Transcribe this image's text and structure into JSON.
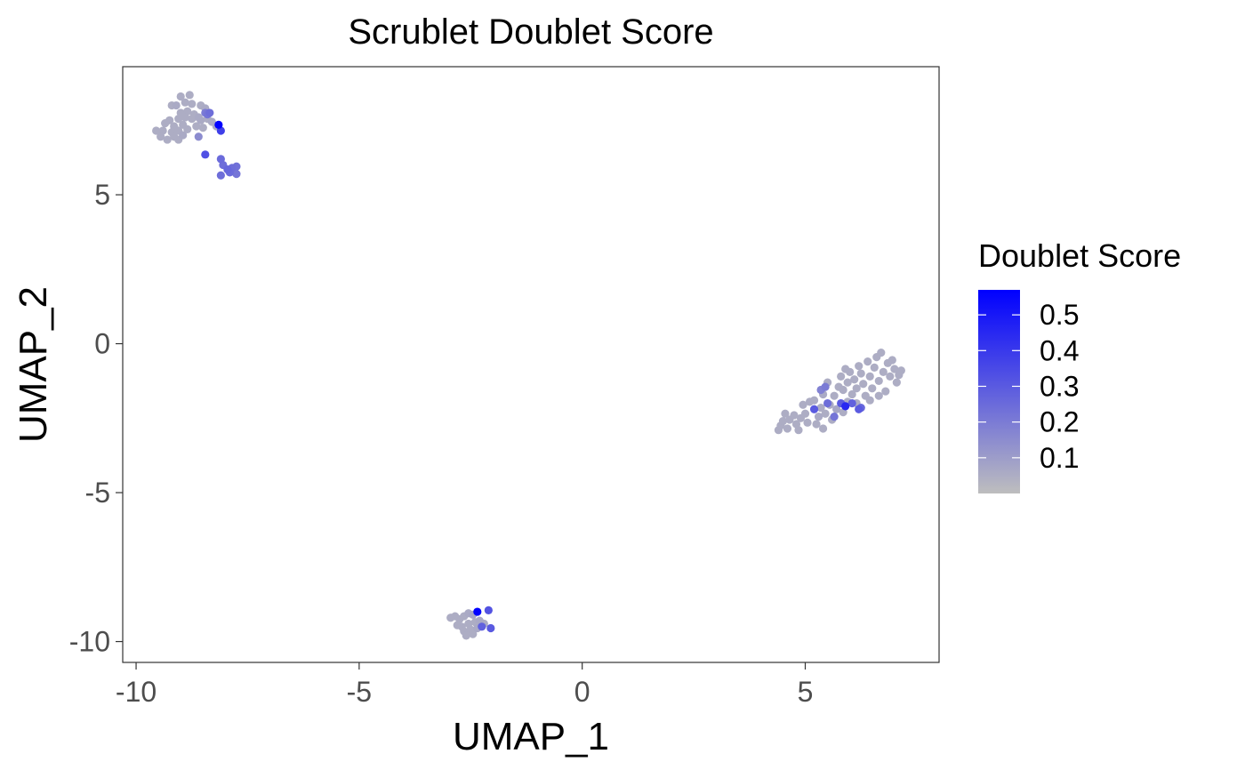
{
  "chart_data": {
    "type": "scatter",
    "title": "Scrublet Doublet Score",
    "xlabel": "UMAP_1",
    "ylabel": "UMAP_2",
    "xlim": [
      -10.3,
      8.0
    ],
    "ylim": [
      -10.7,
      9.3
    ],
    "xticks": [
      -10,
      -5,
      0,
      5
    ],
    "yticks": [
      -10,
      -5,
      0,
      5
    ],
    "grid": false,
    "legend": {
      "title": "Doublet Score",
      "placement": "right",
      "range": [
        0.0,
        0.57
      ],
      "breaks": [
        0.5,
        0.4,
        0.3,
        0.2,
        0.1
      ],
      "low_color": "#bebebe",
      "high_color": "#0000ff"
    },
    "point_color_default": "#bebebe",
    "points": [
      {
        "x": -9.0,
        "y": 8.3,
        "s": 0.05
      },
      {
        "x": -8.8,
        "y": 8.35,
        "s": 0.05
      },
      {
        "x": -8.9,
        "y": 8.1,
        "s": 0.05
      },
      {
        "x": -9.1,
        "y": 8.0,
        "s": 0.06
      },
      {
        "x": -8.75,
        "y": 8.05,
        "s": 0.05
      },
      {
        "x": -9.2,
        "y": 8.0,
        "s": 0.05
      },
      {
        "x": -8.55,
        "y": 8.0,
        "s": 0.05
      },
      {
        "x": -8.45,
        "y": 7.9,
        "s": 0.06
      },
      {
        "x": -9.0,
        "y": 7.75,
        "s": 0.05
      },
      {
        "x": -8.85,
        "y": 7.8,
        "s": 0.05
      },
      {
        "x": -8.7,
        "y": 7.7,
        "s": 0.05
      },
      {
        "x": -8.9,
        "y": 7.6,
        "s": 0.05
      },
      {
        "x": -9.05,
        "y": 7.55,
        "s": 0.05
      },
      {
        "x": -8.75,
        "y": 7.55,
        "s": 0.05
      },
      {
        "x": -8.6,
        "y": 7.6,
        "s": 0.06
      },
      {
        "x": -9.25,
        "y": 7.5,
        "s": 0.05
      },
      {
        "x": -9.35,
        "y": 7.4,
        "s": 0.05
      },
      {
        "x": -9.15,
        "y": 7.3,
        "s": 0.05
      },
      {
        "x": -8.95,
        "y": 7.35,
        "s": 0.05
      },
      {
        "x": -8.65,
        "y": 7.3,
        "s": 0.05
      },
      {
        "x": -9.4,
        "y": 7.15,
        "s": 0.05
      },
      {
        "x": -9.2,
        "y": 7.1,
        "s": 0.05
      },
      {
        "x": -9.05,
        "y": 7.15,
        "s": 0.05
      },
      {
        "x": -8.85,
        "y": 7.2,
        "s": 0.05
      },
      {
        "x": -9.55,
        "y": 7.15,
        "s": 0.05
      },
      {
        "x": -9.45,
        "y": 6.95,
        "s": 0.05
      },
      {
        "x": -9.15,
        "y": 6.95,
        "s": 0.05
      },
      {
        "x": -8.95,
        "y": 7.0,
        "s": 0.06
      },
      {
        "x": -9.3,
        "y": 6.85,
        "s": 0.05
      },
      {
        "x": -9.05,
        "y": 6.85,
        "s": 0.05
      },
      {
        "x": -8.55,
        "y": 7.5,
        "s": 0.06
      },
      {
        "x": -8.4,
        "y": 7.55,
        "s": 0.05
      },
      {
        "x": -8.3,
        "y": 7.45,
        "s": 0.06
      },
      {
        "x": -8.5,
        "y": 7.25,
        "s": 0.05
      },
      {
        "x": -8.2,
        "y": 7.3,
        "s": 0.07
      },
      {
        "x": -8.45,
        "y": 7.75,
        "s": 0.2
      },
      {
        "x": -8.4,
        "y": 7.7,
        "s": 0.22
      },
      {
        "x": -8.35,
        "y": 7.75,
        "s": 0.24
      },
      {
        "x": -8.6,
        "y": 6.95,
        "s": 0.15
      },
      {
        "x": -8.15,
        "y": 7.35,
        "s": 0.57
      },
      {
        "x": -8.1,
        "y": 7.15,
        "s": 0.38
      },
      {
        "x": -8.45,
        "y": 6.35,
        "s": 0.33
      },
      {
        "x": -8.1,
        "y": 6.2,
        "s": 0.25
      },
      {
        "x": -8.05,
        "y": 6.0,
        "s": 0.24
      },
      {
        "x": -7.95,
        "y": 5.85,
        "s": 0.26
      },
      {
        "x": -7.85,
        "y": 5.9,
        "s": 0.24
      },
      {
        "x": -7.8,
        "y": 5.8,
        "s": 0.22
      },
      {
        "x": -7.75,
        "y": 5.95,
        "s": 0.23
      },
      {
        "x": -7.9,
        "y": 5.75,
        "s": 0.25
      },
      {
        "x": -8.1,
        "y": 5.65,
        "s": 0.24
      },
      {
        "x": -7.75,
        "y": 5.7,
        "s": 0.22
      },
      {
        "x": -2.95,
        "y": -9.2,
        "s": 0.05
      },
      {
        "x": -2.85,
        "y": -9.15,
        "s": 0.05
      },
      {
        "x": -2.75,
        "y": -9.25,
        "s": 0.05
      },
      {
        "x": -2.65,
        "y": -9.15,
        "s": 0.05
      },
      {
        "x": -2.55,
        "y": -9.05,
        "s": 0.06
      },
      {
        "x": -2.45,
        "y": -9.1,
        "s": 0.07
      },
      {
        "x": -2.8,
        "y": -9.45,
        "s": 0.05
      },
      {
        "x": -2.7,
        "y": -9.5,
        "s": 0.05
      },
      {
        "x": -2.55,
        "y": -9.4,
        "s": 0.05
      },
      {
        "x": -2.4,
        "y": -9.35,
        "s": 0.05
      },
      {
        "x": -2.3,
        "y": -9.3,
        "s": 0.06
      },
      {
        "x": -2.65,
        "y": -9.65,
        "s": 0.05
      },
      {
        "x": -2.5,
        "y": -9.6,
        "s": 0.05
      },
      {
        "x": -2.35,
        "y": -9.55,
        "s": 0.06
      },
      {
        "x": -2.6,
        "y": -9.8,
        "s": 0.05
      },
      {
        "x": -2.45,
        "y": -9.75,
        "s": 0.05
      },
      {
        "x": -2.2,
        "y": -9.4,
        "s": 0.05
      },
      {
        "x": -2.35,
        "y": -9.0,
        "s": 0.57
      },
      {
        "x": -2.1,
        "y": -8.95,
        "s": 0.32
      },
      {
        "x": -2.05,
        "y": -9.55,
        "s": 0.3
      },
      {
        "x": -2.25,
        "y": -9.5,
        "s": 0.28
      },
      {
        "x": 4.4,
        "y": -2.9,
        "s": 0.05
      },
      {
        "x": 4.45,
        "y": -2.75,
        "s": 0.05
      },
      {
        "x": 4.5,
        "y": -2.6,
        "s": 0.05
      },
      {
        "x": 4.6,
        "y": -2.85,
        "s": 0.05
      },
      {
        "x": 4.65,
        "y": -2.55,
        "s": 0.05
      },
      {
        "x": 4.55,
        "y": -2.35,
        "s": 0.05
      },
      {
        "x": 4.75,
        "y": -2.4,
        "s": 0.05
      },
      {
        "x": 4.8,
        "y": -2.7,
        "s": 0.05
      },
      {
        "x": 4.9,
        "y": -2.5,
        "s": 0.05
      },
      {
        "x": 5.0,
        "y": -2.35,
        "s": 0.05
      },
      {
        "x": 5.05,
        "y": -2.65,
        "s": 0.05
      },
      {
        "x": 4.85,
        "y": -2.9,
        "s": 0.05
      },
      {
        "x": 4.95,
        "y": -2.05,
        "s": 0.05
      },
      {
        "x": 5.1,
        "y": -1.95,
        "s": 0.05
      },
      {
        "x": 5.25,
        "y": -2.7,
        "s": 0.05
      },
      {
        "x": 5.3,
        "y": -2.45,
        "s": 0.06
      },
      {
        "x": 5.35,
        "y": -2.15,
        "s": 0.05
      },
      {
        "x": 5.45,
        "y": -2.35,
        "s": 0.05
      },
      {
        "x": 5.4,
        "y": -2.85,
        "s": 0.05
      },
      {
        "x": 5.55,
        "y": -2.05,
        "s": 0.06
      },
      {
        "x": 5.6,
        "y": -2.55,
        "s": 0.05
      },
      {
        "x": 5.65,
        "y": -1.75,
        "s": 0.05
      },
      {
        "x": 5.7,
        "y": -2.2,
        "s": 0.07
      },
      {
        "x": 5.75,
        "y": -1.45,
        "s": 0.05
      },
      {
        "x": 5.8,
        "y": -1.1,
        "s": 0.05
      },
      {
        "x": 5.85,
        "y": -1.55,
        "s": 0.05
      },
      {
        "x": 5.9,
        "y": -0.85,
        "s": 0.05
      },
      {
        "x": 5.95,
        "y": -1.3,
        "s": 0.05
      },
      {
        "x": 6.0,
        "y": -0.95,
        "s": 0.05
      },
      {
        "x": 6.05,
        "y": -1.7,
        "s": 0.05
      },
      {
        "x": 6.1,
        "y": -1.2,
        "s": 0.05
      },
      {
        "x": 6.15,
        "y": -1.5,
        "s": 0.05
      },
      {
        "x": 6.2,
        "y": -0.75,
        "s": 0.05
      },
      {
        "x": 6.25,
        "y": -1.0,
        "s": 0.05
      },
      {
        "x": 6.3,
        "y": -1.35,
        "s": 0.05
      },
      {
        "x": 6.35,
        "y": -1.75,
        "s": 0.05
      },
      {
        "x": 6.4,
        "y": -0.6,
        "s": 0.05
      },
      {
        "x": 6.45,
        "y": -1.1,
        "s": 0.05
      },
      {
        "x": 6.5,
        "y": -1.5,
        "s": 0.05
      },
      {
        "x": 6.55,
        "y": -0.8,
        "s": 0.05
      },
      {
        "x": 6.6,
        "y": -0.45,
        "s": 0.05
      },
      {
        "x": 6.65,
        "y": -1.25,
        "s": 0.05
      },
      {
        "x": 6.7,
        "y": -0.3,
        "s": 0.05
      },
      {
        "x": 6.75,
        "y": -0.95,
        "s": 0.05
      },
      {
        "x": 6.8,
        "y": -1.6,
        "s": 0.05
      },
      {
        "x": 6.85,
        "y": -0.65,
        "s": 0.05
      },
      {
        "x": 6.9,
        "y": -1.1,
        "s": 0.05
      },
      {
        "x": 6.95,
        "y": -0.55,
        "s": 0.05
      },
      {
        "x": 7.0,
        "y": -0.85,
        "s": 0.05
      },
      {
        "x": 7.05,
        "y": -1.3,
        "s": 0.05
      },
      {
        "x": 7.1,
        "y": -1.05,
        "s": 0.05
      },
      {
        "x": 7.15,
        "y": -0.9,
        "s": 0.05
      },
      {
        "x": 6.45,
        "y": -1.9,
        "s": 0.05
      },
      {
        "x": 6.15,
        "y": -2.0,
        "s": 0.05
      },
      {
        "x": 5.85,
        "y": -2.3,
        "s": 0.05
      },
      {
        "x": 5.5,
        "y": -1.3,
        "s": 0.05
      },
      {
        "x": 5.4,
        "y": -1.7,
        "s": 0.06
      },
      {
        "x": 5.2,
        "y": -1.9,
        "s": 0.05
      },
      {
        "x": 6.65,
        "y": -1.75,
        "s": 0.05
      },
      {
        "x": 5.95,
        "y": -1.95,
        "s": 0.05
      },
      {
        "x": 5.2,
        "y": -2.2,
        "s": 0.3
      },
      {
        "x": 5.45,
        "y": -1.45,
        "s": 0.2
      },
      {
        "x": 5.5,
        "y": -2.0,
        "s": 0.24
      },
      {
        "x": 5.65,
        "y": -2.45,
        "s": 0.22
      },
      {
        "x": 5.8,
        "y": -2.0,
        "s": 0.3
      },
      {
        "x": 5.9,
        "y": -2.1,
        "s": 0.45
      },
      {
        "x": 6.05,
        "y": -2.0,
        "s": 0.28
      },
      {
        "x": 6.2,
        "y": -2.2,
        "s": 0.3
      },
      {
        "x": 6.25,
        "y": -2.15,
        "s": 0.26
      },
      {
        "x": 5.35,
        "y": -1.55,
        "s": 0.18
      }
    ]
  }
}
